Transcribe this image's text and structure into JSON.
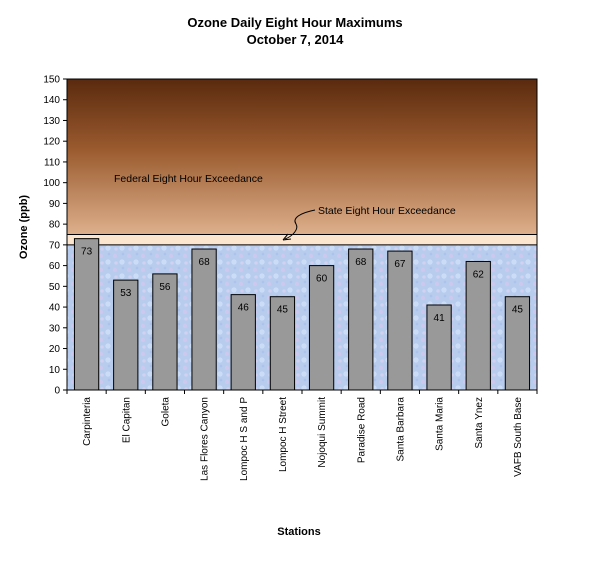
{
  "chart_data": {
    "type": "bar",
    "title": "Ozone Daily Eight Hour Maximums",
    "subtitle": "October 7, 2014",
    "xlabel": "Stations",
    "ylabel": "Ozone (ppb)",
    "ylim": [
      0,
      150
    ],
    "yticks": [
      "0",
      "10",
      "20",
      "30",
      "40",
      "50",
      "60",
      "70",
      "80",
      "90",
      "100",
      "110",
      "120",
      "130",
      "140",
      "150"
    ],
    "categories": [
      "Carpinteria",
      "El Capitan",
      "Goleta",
      "Las Flores Canyon",
      "Lompoc H S and P",
      "Lompoc H Street",
      "Nojoqui Summit",
      "Paradise Road",
      "Santa Barbara",
      "Santa Maria",
      "Santa Ynez",
      "VAFB South Base"
    ],
    "values": [
      73,
      53,
      56,
      68,
      46,
      45,
      60,
      68,
      67,
      41,
      62,
      45
    ],
    "data_labels": [
      "73",
      "53",
      "56",
      "68",
      "46",
      "45",
      "60",
      "68",
      "67",
      "41",
      "62",
      "45"
    ],
    "bands": {
      "state_threshold": 70,
      "federal_threshold": 75,
      "state_label": "State Eight Hour Exceedance",
      "federal_label": "Federal Eight Hour Exceedance"
    },
    "grid": false,
    "legend": "none",
    "colors": {
      "bar": "#999999",
      "bar_edge": "#000000",
      "plot_bottom": "#b8cdee",
      "federal_top": "#5a2a0e",
      "federal_bottom": "#ddb08c",
      "state_band": "#fde6cf"
    }
  }
}
